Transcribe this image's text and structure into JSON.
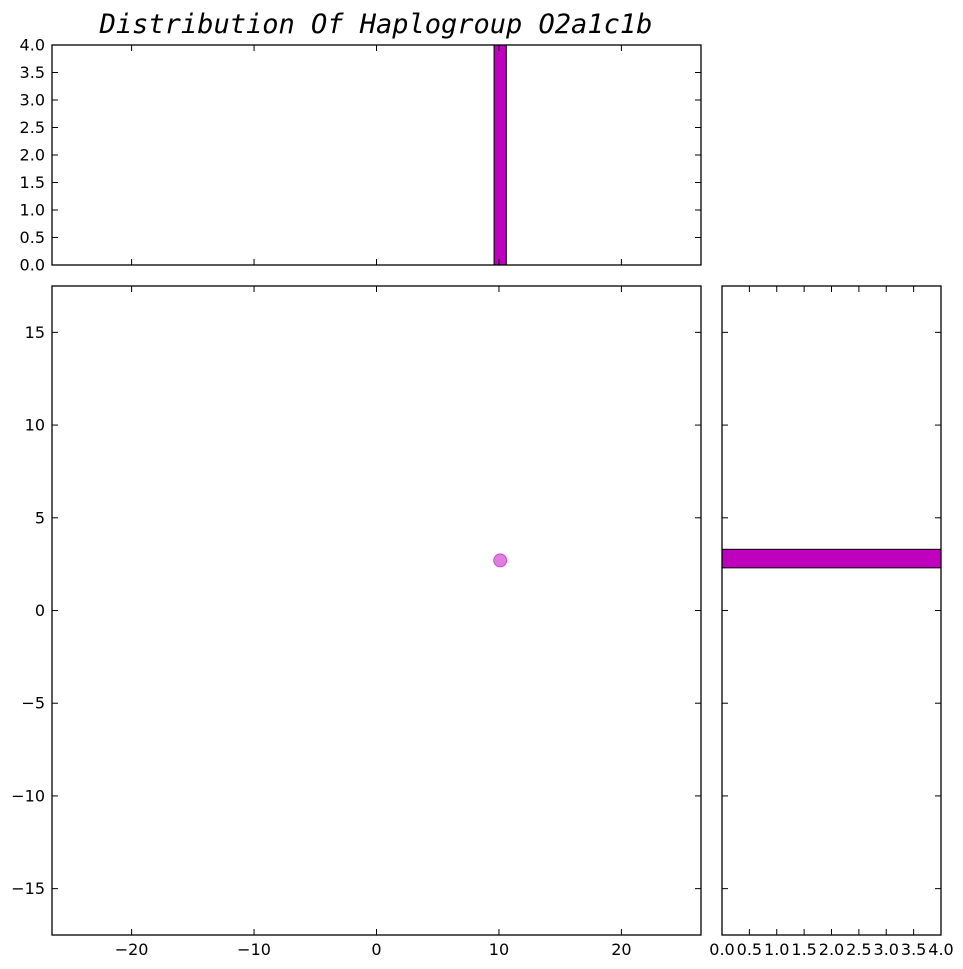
{
  "chart_data": [
    {
      "panel": "scatter",
      "type": "scatter",
      "points": [
        {
          "x": 10.1,
          "y": 2.7
        }
      ],
      "xlim": [
        -26.5,
        26.5
      ],
      "ylim": [
        -17.5,
        17.5
      ],
      "xticks": [
        -20,
        -10,
        0,
        10,
        20
      ],
      "yticks": [
        -15,
        -10,
        -5,
        0,
        5,
        10,
        15
      ],
      "xtick_labels": [
        "−20",
        "−10",
        "0",
        "10",
        "20"
      ],
      "ytick_labels": [
        "−15",
        "−10",
        "−5",
        "0",
        "5",
        "10",
        "15"
      ],
      "color": "#bf00bf",
      "grid": false
    },
    {
      "panel": "top-histogram",
      "type": "bar",
      "title": "Distribution Of Haplogroup O2a1c1b",
      "bins": [
        {
          "x0": 9.6,
          "x1": 10.6,
          "count": 4
        }
      ],
      "xlim": [
        -26.5,
        26.5
      ],
      "ylim": [
        0,
        4
      ],
      "yticks": [
        0,
        0.5,
        1,
        1.5,
        2,
        2.5,
        3,
        3.5,
        4
      ],
      "ytick_labels": [
        "0.0",
        "0.5",
        "1.0",
        "1.5",
        "2.0",
        "2.5",
        "3.0",
        "3.5",
        "4.0"
      ],
      "color": "#bf00bf",
      "grid": false
    },
    {
      "panel": "right-histogram",
      "type": "bar",
      "orientation": "horizontal",
      "bins": [
        {
          "y0": 2.3,
          "y1": 3.3,
          "count": 4
        }
      ],
      "xlim": [
        0,
        4
      ],
      "ylim": [
        -17.5,
        17.5
      ],
      "xticks": [
        0,
        0.5,
        1,
        1.5,
        2,
        2.5,
        3,
        3.5,
        4
      ],
      "xtick_labels": [
        "0.0",
        "0.5",
        "1.0",
        "1.5",
        "2.0",
        "2.5",
        "3.0",
        "3.5",
        "4.0"
      ],
      "color": "#bf00bf",
      "grid": false
    }
  ]
}
